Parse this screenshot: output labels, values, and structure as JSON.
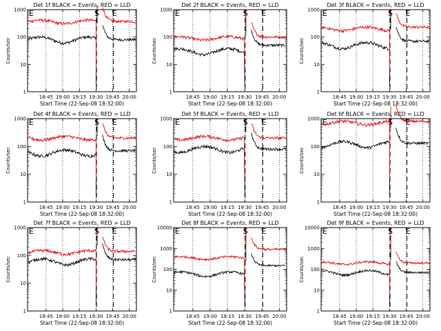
{
  "figure": {
    "colors": {
      "events": "#000000",
      "lld": "#e00000",
      "axis": "#000000",
      "background": "#ffffff"
    },
    "flare_markers": [
      "E",
      "S",
      "E"
    ]
  },
  "chart_data": [
    {
      "type": "line",
      "title": "Det 1f BLACK = Events, RED = LLD",
      "xlabel": "Start Time (22-Sep-08 18:32:00)",
      "ylabel": "Counts/sec",
      "x_ticks": [
        "18:45",
        "19:00",
        "19:15",
        "19:30",
        "19:45",
        "20:00"
      ],
      "ylim": [
        1,
        1000
      ],
      "yscale": "log",
      "y_ticks": [
        "1",
        "10",
        "100",
        "1000"
      ],
      "series": [
        {
          "name": "Events",
          "color": "#000000",
          "before": 80,
          "after": 80
        },
        {
          "name": "LLD",
          "color": "#e00000",
          "before": 360,
          "after": 370
        }
      ],
      "markers": [
        "E",
        "S",
        "E"
      ]
    },
    {
      "type": "line",
      "title": "Det 2f BLACK = Events, RED = LLD",
      "xlabel": "Start Time (22-Sep-08 18:32:00)",
      "ylabel": "Counts/sec",
      "x_ticks": [
        "18:45",
        "19:00",
        "19:15",
        "19:30",
        "19:45",
        "20:00"
      ],
      "ylim": [
        1,
        1000
      ],
      "yscale": "log",
      "y_ticks": [
        "1",
        "10",
        "100",
        "1000"
      ],
      "series": [
        {
          "name": "Events",
          "color": "#000000",
          "before": 30,
          "after": 50
        },
        {
          "name": "LLD",
          "color": "#e00000",
          "before": 90,
          "after": 100
        }
      ],
      "markers": [
        "E",
        "S",
        "E"
      ]
    },
    {
      "type": "line",
      "title": "Det 3f BLACK = Events, RED = LLD",
      "xlabel": "Start Time (22-Sep-08 18:32:00)",
      "ylabel": "Counts/sec",
      "x_ticks": [
        "18:45",
        "19:00",
        "19:15",
        "19:30",
        "19:45",
        "20:00"
      ],
      "ylim": [
        1,
        1000
      ],
      "yscale": "log",
      "y_ticks": [
        "1",
        "10",
        "100",
        "1000"
      ],
      "series": [
        {
          "name": "Events",
          "color": "#000000",
          "before": 50,
          "after": 70
        },
        {
          "name": "LLD",
          "color": "#e00000",
          "before": 200,
          "after": 230
        }
      ],
      "markers": [
        "E",
        "S",
        "E"
      ]
    },
    {
      "type": "line",
      "title": "Det 4f BLACK = Events, RED = LLD",
      "xlabel": "Start Time (22-Sep-08 18:32:00)",
      "ylabel": "Counts/sec",
      "x_ticks": [
        "18:45",
        "19:00",
        "19:15",
        "19:30",
        "19:45",
        "20:00"
      ],
      "ylim": [
        1,
        1000
      ],
      "yscale": "log",
      "y_ticks": [
        "1",
        "10",
        "100",
        "1000"
      ],
      "series": [
        {
          "name": "Events",
          "color": "#000000",
          "before": 60,
          "after": 70
        },
        {
          "name": "LLD",
          "color": "#e00000",
          "before": 200,
          "after": 200
        }
      ],
      "markers": [
        "E",
        "S",
        "E"
      ]
    },
    {
      "type": "line",
      "title": "Det 5f BLACK = Events, RED = LLD",
      "xlabel": "Start Time (22-Sep-08 18:32:00)",
      "ylabel": "Counts/sec",
      "x_ticks": [
        "18:45",
        "19:00",
        "19:15",
        "19:30",
        "19:45",
        "20:00"
      ],
      "ylim": [
        1,
        1000
      ],
      "yscale": "log",
      "y_ticks": [
        "1",
        "10",
        "100",
        "1000"
      ],
      "series": [
        {
          "name": "Events",
          "color": "#000000",
          "before": 80,
          "after": 80
        },
        {
          "name": "LLD",
          "color": "#e00000",
          "before": 200,
          "after": 200
        }
      ],
      "markers": [
        "E",
        "S",
        "E"
      ]
    },
    {
      "type": "line",
      "title": "Det 6f BLACK = Events, RED = LLD",
      "xlabel": "Start Time (22-Sep-08 18:32:00)",
      "ylabel": "Counts/sec",
      "x_ticks": [
        "18:45",
        "19:00",
        "19:15",
        "19:30",
        "19:45",
        "20:00"
      ],
      "ylim": [
        1,
        1000
      ],
      "yscale": "log",
      "y_ticks": [
        "1",
        "10",
        "100",
        "1000"
      ],
      "series": [
        {
          "name": "Events",
          "color": "#000000",
          "before": 120,
          "after": 130
        },
        {
          "name": "LLD",
          "color": "#e00000",
          "before": 700,
          "after": 800
        }
      ],
      "markers": [
        "E",
        "S",
        "E"
      ]
    },
    {
      "type": "line",
      "title": "Det 7f BLACK = Events, RED = LLD",
      "xlabel": "Start Time (22-Sep-08 18:32:00)",
      "ylabel": "Counts/sec",
      "x_ticks": [
        "18:45",
        "19:00",
        "19:15",
        "19:30",
        "19:45",
        "20:00"
      ],
      "ylim": [
        1,
        1000
      ],
      "yscale": "log",
      "y_ticks": [
        "1",
        "10",
        "100",
        "1000"
      ],
      "series": [
        {
          "name": "Events",
          "color": "#000000",
          "before": 60,
          "after": 70
        },
        {
          "name": "LLD",
          "color": "#e00000",
          "before": 130,
          "after": 140
        }
      ],
      "markers": [
        "E",
        "S",
        "E"
      ]
    },
    {
      "type": "line",
      "title": "Det 8f BLACK = Events, RED = LLD",
      "xlabel": "Start Time (22-Sep-08 18:32:00)",
      "ylabel": "Counts/sec",
      "x_ticks": [
        "18:45",
        "19:00",
        "19:15",
        "19:30",
        "19:45",
        "20:00"
      ],
      "ylim": [
        1,
        10000
      ],
      "yscale": "log",
      "y_ticks": [
        "1",
        "10",
        "100",
        "1000",
        "10000"
      ],
      "series": [
        {
          "name": "Events",
          "color": "#000000",
          "before": 60,
          "after": 150
        },
        {
          "name": "LLD",
          "color": "#e00000",
          "before": 350,
          "after": 900
        }
      ],
      "markers": [
        "E",
        "S",
        "E"
      ]
    },
    {
      "type": "line",
      "title": "Det 9f BLACK = Events, RED = LLD",
      "xlabel": "Start Time (22-Sep-08 18:32:00)",
      "ylabel": "Counts/sec",
      "x_ticks": [
        "18:45",
        "19:00",
        "19:15",
        "19:30",
        "19:45",
        "20:00"
      ],
      "ylim": [
        1,
        10000
      ],
      "yscale": "log",
      "y_ticks": [
        "1",
        "10",
        "100",
        "1000",
        "10000"
      ],
      "series": [
        {
          "name": "Events",
          "color": "#000000",
          "before": 70,
          "after": 70
        },
        {
          "name": "LLD",
          "color": "#e00000",
          "before": 200,
          "after": 200
        }
      ],
      "markers": [
        "E",
        "S",
        "E"
      ]
    }
  ]
}
